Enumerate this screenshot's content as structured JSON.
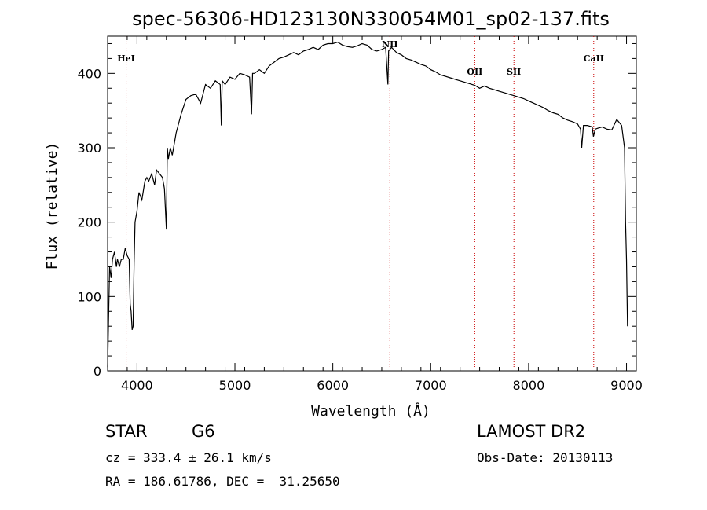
{
  "chart_data": {
    "type": "line",
    "title": "spec-56306-HD123130N330054M01_sp02-137.fits",
    "xlabel": "Wavelength (Å)",
    "ylabel": "Flux (relative)",
    "xlim": [
      3700,
      9100
    ],
    "ylim": [
      0,
      450
    ],
    "xticks": [
      4000,
      5000,
      6000,
      7000,
      8000,
      9000
    ],
    "yticks": [
      0,
      100,
      200,
      300,
      400
    ],
    "grid": false,
    "series": [
      {
        "x": [
          3700,
          3720,
          3735,
          3750,
          3770,
          3790,
          3800,
          3820,
          3840,
          3860,
          3880,
          3900,
          3920,
          3930,
          3940,
          3950,
          3960,
          3970,
          3980,
          4000,
          4020,
          4050,
          4080,
          4100,
          4120,
          4150,
          4180,
          4200,
          4230,
          4260,
          4280,
          4300,
          4310,
          4320,
          4340,
          4360,
          4400,
          4450,
          4500,
          4550,
          4600,
          4650,
          4700,
          4750,
          4800,
          4850,
          4861,
          4870,
          4900,
          4950,
          5000,
          5050,
          5100,
          5150,
          5170,
          5180,
          5200,
          5250,
          5300,
          5350,
          5400,
          5450,
          5500,
          5550,
          5600,
          5650,
          5700,
          5750,
          5800,
          5850,
          5900,
          5950,
          6000,
          6050,
          6100,
          6150,
          6200,
          6250,
          6300,
          6350,
          6400,
          6450,
          6500,
          6540,
          6563,
          6570,
          6600,
          6650,
          6700,
          6750,
          6800,
          6850,
          6900,
          6950,
          7000,
          7050,
          7100,
          7150,
          7200,
          7250,
          7300,
          7350,
          7400,
          7450,
          7500,
          7550,
          7600,
          7650,
          7700,
          7750,
          7800,
          7850,
          7900,
          7950,
          8000,
          8050,
          8100,
          8150,
          8200,
          8250,
          8300,
          8350,
          8400,
          8450,
          8500,
          8530,
          8542,
          8560,
          8600,
          8650,
          8662,
          8680,
          8700,
          8750,
          8800,
          8850,
          8900,
          8950,
          8980,
          8990,
          9000,
          9010
        ],
        "y": [
          5,
          140,
          125,
          150,
          160,
          140,
          150,
          140,
          150,
          150,
          165,
          155,
          150,
          90,
          80,
          55,
          60,
          145,
          200,
          215,
          240,
          230,
          255,
          260,
          255,
          265,
          250,
          270,
          265,
          260,
          245,
          190,
          300,
          285,
          300,
          290,
          320,
          345,
          365,
          370,
          372,
          360,
          385,
          380,
          390,
          385,
          330,
          390,
          385,
          395,
          392,
          400,
          398,
          395,
          345,
          400,
          400,
          405,
          400,
          410,
          415,
          420,
          422,
          425,
          428,
          425,
          430,
          432,
          435,
          432,
          438,
          440,
          440,
          442,
          438,
          436,
          435,
          437,
          440,
          438,
          432,
          430,
          432,
          435,
          385,
          430,
          435,
          428,
          425,
          420,
          418,
          415,
          412,
          410,
          405,
          402,
          398,
          396,
          394,
          392,
          390,
          388,
          386,
          384,
          380,
          383,
          380,
          378,
          376,
          374,
          372,
          370,
          368,
          366,
          363,
          360,
          357,
          354,
          350,
          347,
          345,
          340,
          337,
          335,
          332,
          325,
          300,
          330,
          330,
          328,
          315,
          325,
          326,
          328,
          325,
          324,
          338,
          330,
          300,
          200,
          150,
          60
        ],
        "color": "#000000"
      }
    ],
    "annotations": [
      {
        "label": "HeI",
        "x": 3889
      },
      {
        "label": "NII",
        "x": 6583
      },
      {
        "label": "OII",
        "x": 7450
      },
      {
        "label": "SII",
        "x": 7850
      },
      {
        "label": "CaII",
        "x": 8665
      }
    ]
  },
  "info": {
    "object_class": "STAR",
    "subclass": "G6",
    "survey": "LAMOST DR2",
    "redshift": "cz = 333.4 ± 26.1 km/s",
    "obs_date": "Obs-Date: 20130113",
    "coords": "RA = 186.61786, DEC =  31.25650"
  }
}
